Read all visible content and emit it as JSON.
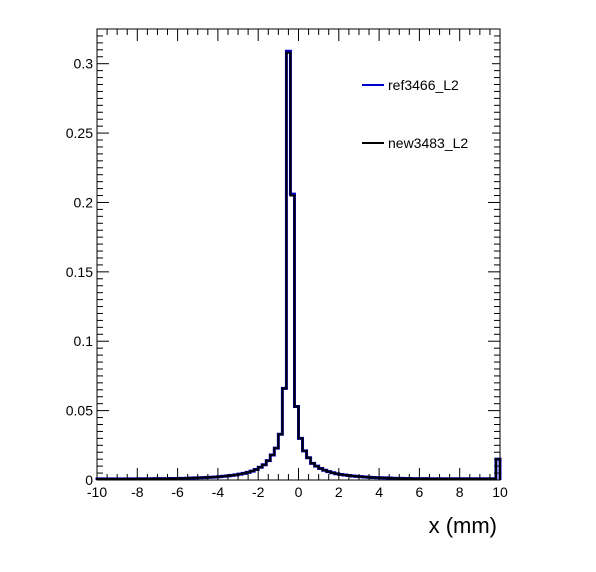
{
  "chart_data": {
    "type": "line",
    "title": "",
    "xlabel": "x (mm)",
    "ylabel": "",
    "xlim": [
      -10,
      10
    ],
    "ylim": [
      0,
      0.325
    ],
    "grid": false,
    "legend_position": "top-right",
    "x_ticks": [
      -10,
      -8,
      -6,
      -4,
      -2,
      0,
      2,
      4,
      6,
      8,
      10
    ],
    "x_tick_labels": [
      "-10",
      "-8",
      "-6",
      "-4",
      "-2",
      "0",
      "2",
      "4",
      "6",
      "8",
      "10"
    ],
    "y_ticks": [
      0,
      0.05,
      0.1,
      0.15,
      0.2,
      0.25,
      0.3
    ],
    "y_tick_labels": [
      "0",
      "0.05",
      "0.1",
      "0.15",
      "0.2",
      "0.25",
      "0.3"
    ],
    "bin_edges": [
      -10.0,
      -9.8,
      -9.6,
      -9.4,
      -9.2,
      -9.0,
      -8.8,
      -8.6,
      -8.4,
      -8.2,
      -8.0,
      -7.8,
      -7.6,
      -7.4,
      -7.2,
      -7.0,
      -6.8,
      -6.6,
      -6.4,
      -6.2,
      -6.0,
      -5.8,
      -5.6,
      -5.4,
      -5.2,
      -5.0,
      -4.8,
      -4.6,
      -4.4,
      -4.2,
      -4.0,
      -3.8,
      -3.6,
      -3.4,
      -3.2,
      -3.0,
      -2.8,
      -2.6,
      -2.4,
      -2.2,
      -2.0,
      -1.8,
      -1.6,
      -1.4,
      -1.2,
      -1.0,
      -0.8,
      -0.6,
      -0.4,
      -0.2,
      0.0,
      0.2,
      0.4,
      0.6,
      0.8,
      1.0,
      1.2,
      1.4,
      1.6,
      1.8,
      2.0,
      2.2,
      2.4,
      2.6,
      2.8,
      3.0,
      3.2,
      3.4,
      3.6,
      3.8,
      4.0,
      4.2,
      4.4,
      4.6,
      4.8,
      5.0,
      5.2,
      5.4,
      5.6,
      5.8,
      6.0,
      6.2,
      6.4,
      6.6,
      6.8,
      7.0,
      7.2,
      7.4,
      7.6,
      7.8,
      8.0,
      8.2,
      8.4,
      8.6,
      8.8,
      9.0,
      9.2,
      9.4,
      9.6,
      9.8,
      10.0
    ],
    "series": [
      {
        "name": "ref3466_L2",
        "color": "#0000cc",
        "values": [
          0.0008,
          0.0008,
          0.0008,
          0.0008,
          0.0008,
          0.0008,
          0.0008,
          0.0008,
          0.0008,
          0.0008,
          0.0009,
          0.0009,
          0.0009,
          0.0009,
          0.001,
          0.001,
          0.001,
          0.001,
          0.0011,
          0.0011,
          0.0012,
          0.0012,
          0.0013,
          0.0014,
          0.0015,
          0.0016,
          0.0017,
          0.0019,
          0.002,
          0.0022,
          0.0024,
          0.0027,
          0.003,
          0.0033,
          0.0037,
          0.0042,
          0.0048,
          0.0055,
          0.0064,
          0.0076,
          0.0092,
          0.011,
          0.014,
          0.018,
          0.023,
          0.033,
          0.066,
          0.309,
          0.206,
          0.053,
          0.03,
          0.021,
          0.016,
          0.012,
          0.01,
          0.0083,
          0.007,
          0.006,
          0.0052,
          0.0045,
          0.004,
          0.0036,
          0.0032,
          0.0029,
          0.0026,
          0.0024,
          0.0022,
          0.002,
          0.0018,
          0.0017,
          0.0016,
          0.0015,
          0.0014,
          0.0013,
          0.0012,
          0.0012,
          0.0011,
          0.0011,
          0.001,
          0.001,
          0.001,
          0.001,
          0.0009,
          0.0009,
          0.0009,
          0.0009,
          0.0009,
          0.0009,
          0.0009,
          0.0009,
          0.0009,
          0.0009,
          0.0009,
          0.0009,
          0.0009,
          0.0009,
          0.0009,
          0.0009,
          0.0009,
          0.015
        ]
      },
      {
        "name": "new3483_L2",
        "color": "#000000",
        "values": [
          0.0008,
          0.0008,
          0.0008,
          0.0008,
          0.0008,
          0.0008,
          0.0008,
          0.0008,
          0.0008,
          0.0008,
          0.0009,
          0.0009,
          0.0009,
          0.0009,
          0.001,
          0.001,
          0.001,
          0.001,
          0.0011,
          0.0011,
          0.0012,
          0.0012,
          0.0013,
          0.0014,
          0.0015,
          0.0016,
          0.0017,
          0.0019,
          0.002,
          0.0022,
          0.0024,
          0.0027,
          0.003,
          0.0033,
          0.0037,
          0.0042,
          0.0048,
          0.0055,
          0.0064,
          0.0076,
          0.0092,
          0.011,
          0.014,
          0.018,
          0.023,
          0.033,
          0.066,
          0.308,
          0.205,
          0.053,
          0.03,
          0.021,
          0.016,
          0.012,
          0.01,
          0.0083,
          0.007,
          0.006,
          0.0052,
          0.0045,
          0.004,
          0.0036,
          0.0032,
          0.0029,
          0.0026,
          0.0024,
          0.0022,
          0.002,
          0.0018,
          0.0017,
          0.0016,
          0.0015,
          0.0014,
          0.0013,
          0.0012,
          0.0012,
          0.0011,
          0.0011,
          0.001,
          0.001,
          0.001,
          0.001,
          0.0009,
          0.0009,
          0.0009,
          0.0009,
          0.0009,
          0.0009,
          0.0009,
          0.0009,
          0.0009,
          0.0009,
          0.0009,
          0.0009,
          0.0009,
          0.0009,
          0.0009,
          0.0009,
          0.0009,
          0.015
        ]
      }
    ]
  }
}
